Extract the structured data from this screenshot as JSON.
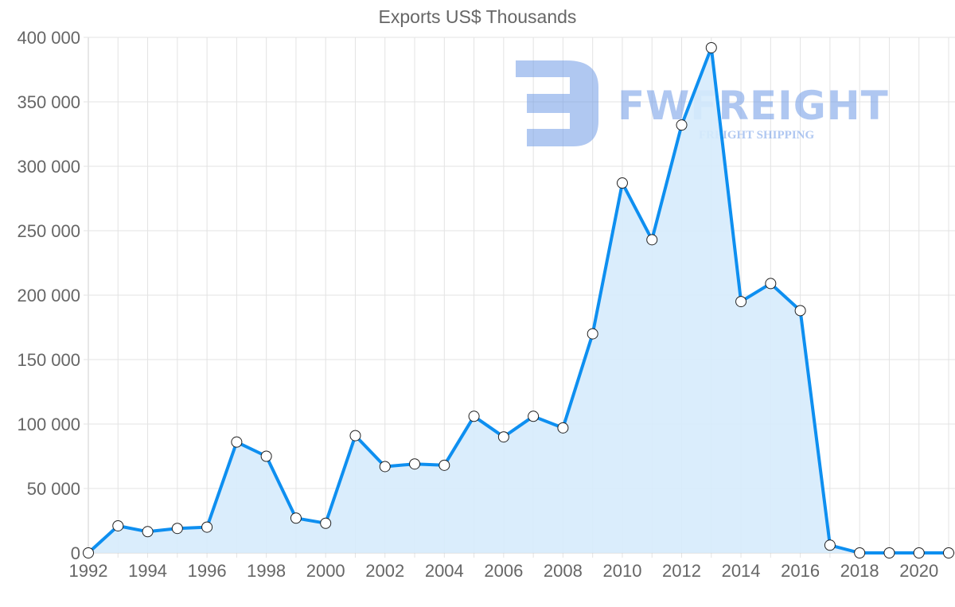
{
  "chart_data": {
    "type": "area",
    "title": "Exports US$ Thousands",
    "xlabel": "",
    "ylabel": "",
    "x": [
      1992,
      1993,
      1994,
      1995,
      1996,
      1997,
      1998,
      1999,
      2000,
      2001,
      2002,
      2003,
      2004,
      2005,
      2006,
      2007,
      2008,
      2009,
      2010,
      2011,
      2012,
      2013,
      2014,
      2015,
      2016,
      2017,
      2018,
      2019,
      2020,
      2021
    ],
    "series": [
      {
        "name": "Exports US$ Thousands",
        "values": [
          0,
          21000,
          16500,
          19000,
          20000,
          86000,
          75000,
          27000,
          23000,
          91000,
          67000,
          69000,
          68000,
          106000,
          90000,
          106000,
          97000,
          170000,
          287000,
          243000,
          332000,
          392000,
          195000,
          209000,
          188000,
          6000,
          0,
          0,
          0,
          0
        ]
      }
    ],
    "ylim": [
      0,
      400000
    ],
    "yticks": [
      "0",
      "50 000",
      "100 000",
      "150 000",
      "200 000",
      "250 000",
      "300 000",
      "350 000",
      "400 000"
    ],
    "xticks": [
      "1992",
      "1994",
      "1996",
      "1998",
      "2000",
      "2002",
      "2004",
      "2006",
      "2008",
      "2010",
      "2012",
      "2014",
      "2016",
      "2018",
      "2020"
    ],
    "grid": true,
    "legend": "none"
  },
  "colors": {
    "line": "#0e8ff0",
    "fill": "#d6ebfc",
    "grid": "#e3e3e3",
    "text": "#666666",
    "watermark": "#aac5f0"
  },
  "watermark": {
    "brand": "FWFREIGHT",
    "tagline": "FREIGHT SHIPPING"
  }
}
